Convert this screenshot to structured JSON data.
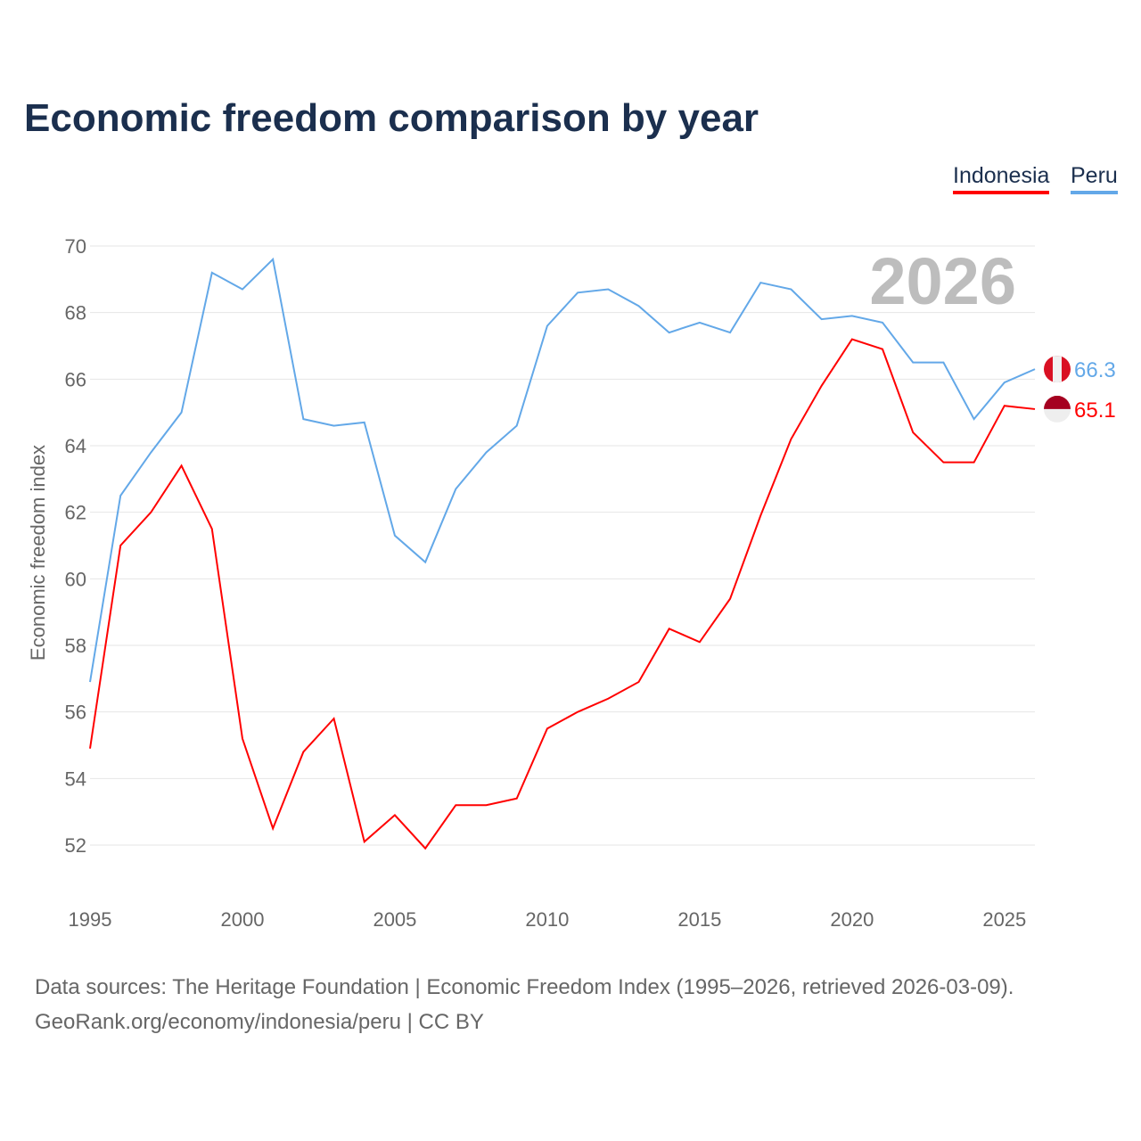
{
  "title": "Economic freedom comparison by year",
  "source_line1": "Data sources: The Heritage Foundation | Economic Freedom Index (1995–2026, retrieved 2026-03-09).",
  "source_line2": "GeoRank.org/economy/indonesia/peru | CC BY",
  "chart_data": {
    "type": "line",
    "title": "Economic freedom comparison by year",
    "xlabel": "",
    "ylabel": "Economic freedom index",
    "year_watermark": "2026",
    "xlim": [
      1995,
      2026
    ],
    "ylim": [
      52,
      70
    ],
    "xticks": [
      "1995",
      "2000",
      "2005",
      "2010",
      "2015",
      "2020",
      "2025"
    ],
    "yticks": [
      "52",
      "54",
      "56",
      "58",
      "60",
      "62",
      "64",
      "66",
      "68",
      "70"
    ],
    "grid": true,
    "legend_position": "top-right",
    "x": [
      1995,
      1996,
      1997,
      1998,
      1999,
      2000,
      2001,
      2002,
      2003,
      2004,
      2005,
      2006,
      2007,
      2008,
      2009,
      2010,
      2011,
      2012,
      2013,
      2014,
      2015,
      2016,
      2017,
      2018,
      2019,
      2020,
      2021,
      2022,
      2023,
      2024,
      2025,
      2026
    ],
    "series": [
      {
        "name": "Indonesia",
        "color": "#ff0000",
        "end_label": "65.1",
        "flag": "indonesia-flag",
        "values": [
          54.9,
          61.0,
          62.0,
          63.4,
          61.5,
          55.2,
          52.5,
          54.8,
          55.8,
          52.1,
          52.9,
          51.9,
          53.2,
          53.2,
          53.4,
          55.5,
          56.0,
          56.4,
          56.9,
          58.5,
          58.1,
          59.4,
          61.9,
          64.2,
          65.8,
          67.2,
          66.9,
          64.4,
          63.5,
          63.5,
          65.2,
          65.1
        ]
      },
      {
        "name": "Peru",
        "color": "#63a8e8",
        "end_label": "66.3",
        "flag": "peru-flag",
        "values": [
          56.9,
          62.5,
          63.8,
          65.0,
          69.2,
          68.7,
          69.6,
          64.8,
          64.6,
          64.7,
          61.3,
          60.5,
          62.7,
          63.8,
          64.6,
          67.6,
          68.6,
          68.7,
          68.2,
          67.4,
          67.7,
          67.4,
          68.9,
          68.7,
          67.8,
          67.9,
          67.7,
          66.5,
          66.5,
          64.8,
          65.9,
          66.3
        ]
      }
    ]
  }
}
